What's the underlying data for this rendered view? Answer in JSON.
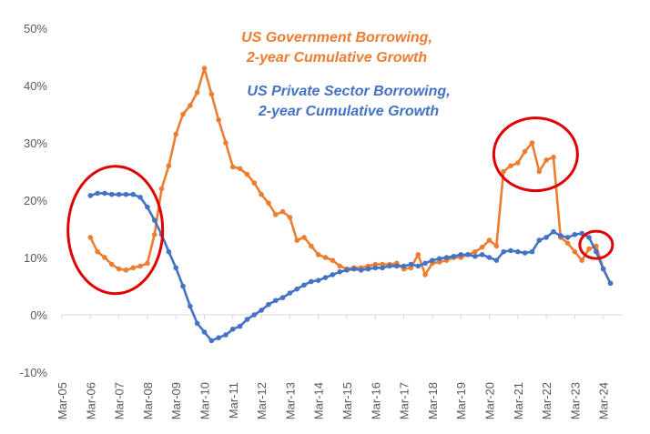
{
  "chart_data": {
    "type": "line",
    "ylim": [
      -10,
      50
    ],
    "yticks": [
      "50%",
      "40%",
      "30%",
      "20%",
      "10%",
      "0%",
      "-10%"
    ],
    "xticks": [
      "Mar-05",
      "Mar-06",
      "Mar-07",
      "Mar-08",
      "Mar-09",
      "Mar-10",
      "Mar-11",
      "Mar-12",
      "Mar-13",
      "Mar-14",
      "Mar-15",
      "Mar-16",
      "Mar-17",
      "Mar-18",
      "Mar-19",
      "Mar-20",
      "Mar-21",
      "Mar-22",
      "Mar-23",
      "Mar-24"
    ],
    "x_start": "Mar-06",
    "x_step": "quarter",
    "annotations": [
      {
        "lines": [
          "US Government Borrowing,",
          "2-year Cumulative Growth"
        ],
        "color": "#ED7D31"
      },
      {
        "lines": [
          "US Private Sector Borrowing,",
          "2-year Cumulative Growth"
        ],
        "color": "#4472C4"
      }
    ],
    "highlight_circles": [
      {
        "x_from": "Mar-06",
        "x_to": "Mar-08",
        "color": "#E00000"
      },
      {
        "x_from": "Mar-20",
        "x_to": "Mar-22",
        "color": "#E00000"
      },
      {
        "x_from": "Mar-23",
        "x_to": "Mar-24",
        "color": "#E00000"
      }
    ],
    "series": [
      {
        "name": "US Government Borrowing, 2-year Cumulative Growth",
        "color": "#ED7D31",
        "values": [
          13.5,
          11.0,
          10.0,
          8.8,
          8.0,
          7.8,
          8.2,
          8.5,
          9.0,
          14.0,
          22.0,
          26.0,
          31.5,
          35.0,
          36.5,
          38.8,
          43.0,
          38.5,
          34.0,
          30.0,
          25.8,
          25.5,
          24.5,
          23.0,
          21.0,
          19.5,
          17.5,
          18.0,
          17.0,
          13.0,
          13.5,
          12.0,
          10.5,
          10.0,
          9.5,
          8.5,
          8.0,
          8.2,
          8.2,
          8.5,
          8.8,
          8.8,
          8.8,
          9.0,
          8.0,
          8.2,
          10.5,
          7.0,
          9.0,
          9.2,
          9.5,
          10.0,
          10.0,
          10.5,
          11.0,
          11.8,
          13.0,
          12.0,
          25.0,
          26.0,
          26.5,
          28.5,
          30.0,
          25.0,
          27.0,
          27.5,
          13.5,
          12.5,
          11.0,
          9.5,
          11.5,
          12.0,
          8.0,
          5.5
        ]
      },
      {
        "name": "US Private Sector Borrowing, 2-year Cumulative Growth",
        "color": "#4472C4",
        "values": [
          20.8,
          21.2,
          21.2,
          21.0,
          21.0,
          21.0,
          21.0,
          20.5,
          18.8,
          16.5,
          14.0,
          11.0,
          8.2,
          5.0,
          1.5,
          -1.5,
          -3.0,
          -4.5,
          -4.0,
          -3.5,
          -2.5,
          -2.0,
          -0.8,
          0.0,
          0.8,
          1.8,
          2.5,
          3.0,
          3.8,
          4.5,
          5.2,
          5.8,
          6.0,
          6.5,
          7.0,
          7.5,
          7.8,
          8.0,
          7.8,
          8.0,
          8.2,
          8.2,
          8.5,
          8.5,
          8.5,
          8.8,
          8.5,
          9.0,
          9.5,
          9.8,
          10.0,
          10.2,
          10.5,
          10.5,
          10.2,
          10.5,
          10.0,
          9.5,
          11.0,
          11.2,
          11.0,
          10.8,
          11.0,
          13.0,
          13.5,
          14.5,
          13.8,
          13.5,
          14.0,
          14.2,
          13.5,
          11.0,
          8.0,
          5.5
        ]
      }
    ]
  }
}
